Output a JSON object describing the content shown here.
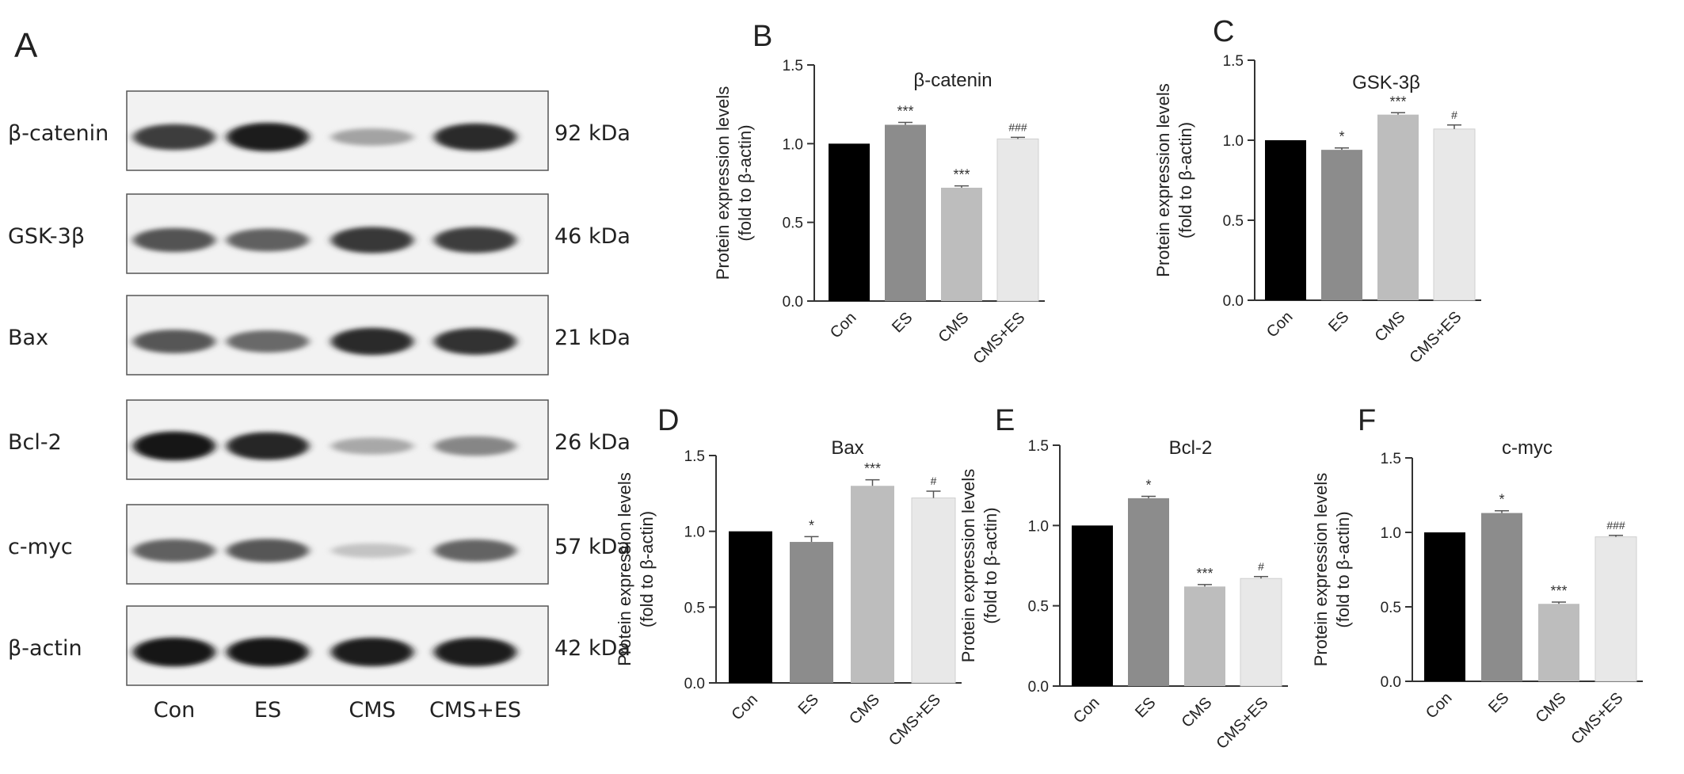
{
  "panel_a": {
    "letter": "A",
    "rows": [
      {
        "label": "β-catenin",
        "kda": "92 kDa",
        "intensities": [
          0.78,
          0.92,
          0.32,
          0.85
        ]
      },
      {
        "label": "GSK-3β",
        "kda": "46 kDa",
        "intensities": [
          0.68,
          0.62,
          0.8,
          0.78
        ]
      },
      {
        "label": "Bax",
        "kda": "21 kDa",
        "intensities": [
          0.66,
          0.58,
          0.85,
          0.82
        ]
      },
      {
        "label": "Bcl-2",
        "kda": "26 kDa",
        "intensities": [
          0.95,
          0.88,
          0.3,
          0.45
        ]
      },
      {
        "label": "c-myc",
        "kda": "57 kDa",
        "intensities": [
          0.62,
          0.66,
          0.18,
          0.6
        ]
      },
      {
        "label": "β-actin",
        "kda": "42 kDa",
        "intensities": [
          0.95,
          0.94,
          0.93,
          0.93
        ]
      }
    ],
    "lanes": [
      "Con",
      "ES",
      "CMS",
      "CMS+ES"
    ]
  },
  "colors": {
    "con": "#000000",
    "es": "#8c8c8c",
    "cms": "#bdbdbd",
    "cmses": "#e8e8e8"
  },
  "chart_data": [
    {
      "letter": "B",
      "type": "bar",
      "title": "β-catenin",
      "ylabel_line1": "Protein expression levels",
      "ylabel_line2": "(fold to β-actin)",
      "categories": [
        "Con",
        "ES",
        "CMS",
        "CMS+ES"
      ],
      "values": [
        1.0,
        1.12,
        0.72,
        1.03
      ],
      "errors": [
        0.0,
        0.015,
        0.012,
        0.01
      ],
      "annotations": [
        "",
        "***",
        "***",
        "###"
      ],
      "ylim": [
        0,
        1.5
      ],
      "yticks": [
        "0.0",
        "0.5",
        "1.0",
        "1.5"
      ]
    },
    {
      "letter": "C",
      "type": "bar",
      "title": "GSK-3β",
      "ylabel_line1": "Protein expression levels",
      "ylabel_line2": "(fold to β-actin)",
      "categories": [
        "Con",
        "ES",
        "CMS",
        "CMS+ES"
      ],
      "values": [
        1.0,
        0.94,
        1.16,
        1.07
      ],
      "errors": [
        0.0,
        0.012,
        0.012,
        0.025
      ],
      "annotations": [
        "",
        "*",
        "***",
        "#"
      ],
      "ylim": [
        0,
        1.5
      ],
      "yticks": [
        "0.0",
        "0.5",
        "1.0",
        "1.5"
      ]
    },
    {
      "letter": "D",
      "type": "bar",
      "title": "Bax",
      "ylabel_line1": "Protein expression levels",
      "ylabel_line2": "(fold to β-actin)",
      "categories": [
        "Con",
        "ES",
        "CMS",
        "CMS+ES"
      ],
      "values": [
        1.0,
        0.93,
        1.3,
        1.22
      ],
      "errors": [
        0.0,
        0.035,
        0.04,
        0.045
      ],
      "annotations": [
        "",
        "*",
        "***",
        "#"
      ],
      "ylim": [
        0,
        1.5
      ],
      "yticks": [
        "0.0",
        "0.5",
        "1.0",
        "1.5"
      ]
    },
    {
      "letter": "E",
      "type": "bar",
      "title": "Bcl-2",
      "ylabel_line1": "Protein expression levels",
      "ylabel_line2": "(fold to β-actin)",
      "categories": [
        "Con",
        "ES",
        "CMS",
        "CMS+ES"
      ],
      "values": [
        1.0,
        1.17,
        0.62,
        0.67
      ],
      "errors": [
        0.0,
        0.012,
        0.012,
        0.012
      ],
      "annotations": [
        "",
        "*",
        "***",
        "#"
      ],
      "ylim": [
        0,
        1.5
      ],
      "yticks": [
        "0.0",
        "0.5",
        "1.0",
        "1.5"
      ]
    },
    {
      "letter": "F",
      "type": "bar",
      "title": "c-myc",
      "ylabel_line1": "Protein expression levels",
      "ylabel_line2": "(fold to β-actin)",
      "categories": [
        "Con",
        "ES",
        "CMS",
        "CMS+ES"
      ],
      "values": [
        1.0,
        1.13,
        0.52,
        0.97
      ],
      "errors": [
        0.0,
        0.015,
        0.012,
        0.01
      ],
      "annotations": [
        "",
        "*",
        "***",
        "###"
      ],
      "ylim": [
        0,
        1.5
      ],
      "yticks": [
        "0.0",
        "0.5",
        "1.0",
        "1.5"
      ]
    }
  ]
}
